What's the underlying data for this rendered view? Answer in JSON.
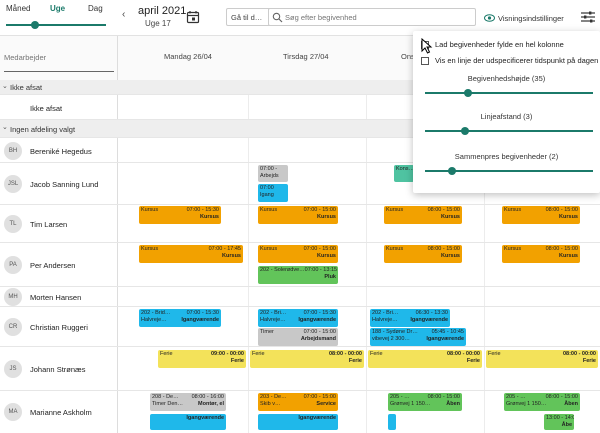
{
  "view_switch": {
    "month": "Måned",
    "week": "Uge",
    "day": "Dag"
  },
  "header": {
    "month_title": "april 2021",
    "week_label": "Uge 17",
    "goto_label": "Gå til d…",
    "search_placeholder": "Søg efter begivenhed",
    "view_settings_label": "Visningsindstillinger"
  },
  "sidebar": {
    "employee_label": "Medarbejder"
  },
  "days": [
    "Mandag 26/04",
    "Tirsdag 27/04",
    "Ons…"
  ],
  "groups": [
    {
      "label": "Ikke afsat"
    },
    {
      "label": "Ingen afdeling valgt"
    }
  ],
  "unassigned_row_label": "Ikke afsat",
  "employees": [
    {
      "initials": "BH",
      "name": "Bereniké Hegedus"
    },
    {
      "initials": "JSL",
      "name": "Jacob Sanning Lund"
    },
    {
      "initials": "TL",
      "name": "Tim Larsen"
    },
    {
      "initials": "PA",
      "name": "Per Andersen"
    },
    {
      "initials": "MH",
      "name": "Morten Hansen"
    },
    {
      "initials": "CR",
      "name": "Christian Ruggeri"
    },
    {
      "initials": "JS",
      "name": "Johann Strønæs"
    },
    {
      "initials": "MA",
      "name": "Marianne Askholm"
    }
  ],
  "events": [
    {
      "l1": "07:00 -",
      "l2": "Arbejds"
    },
    {
      "l1": "07:00",
      "l2": "Igang"
    },
    {
      "l1": "Kons…",
      "l2": ""
    },
    {
      "l1": "Kursus",
      "time": "07:00 - 15:30",
      "l2": "Kursus"
    },
    {
      "l1": "Kursus",
      "time": "07:00 - 15:00",
      "l2": "Kursus"
    },
    {
      "l1": "Kursus",
      "time": "08:00 - 15:00",
      "l2": "Kursus"
    },
    {
      "l1": "Kursus",
      "time": "08:00 - 15:00",
      "l2": "Kursus"
    },
    {
      "l1": "Kursus",
      "time": "07:00 - 17:45",
      "l2": "Kursus"
    },
    {
      "l1": "Kursus",
      "time": "07:00 - 15:00",
      "l2": "Kursus"
    },
    {
      "l1": "Kursus",
      "time": "08:00 - 15:00",
      "l2": "Kursus"
    },
    {
      "l1": "Kursus",
      "time": "08:00 - 15:00",
      "l2": "Kursus"
    },
    {
      "l1": "202 - Solerødve…",
      "time": "07:00 - 13:15",
      "l2": "Pluk"
    },
    {
      "l1": "202 - Brid…",
      "time": "07:00 - 15:30",
      "sub": "Halvreje…",
      "l2": "Igangværende"
    },
    {
      "l1": "202 - Bri…",
      "time": "07:00 - 15:30",
      "sub": "Halvreje…",
      "l2": "Igangværende"
    },
    {
      "l1": "202 - Bri…",
      "time": "06:30 - 13:30",
      "sub": "Halvreje…",
      "l2": "Igangværende"
    },
    {
      "l1": "Timer",
      "time": "07:00 - 15:00",
      "l2": "Arbejdsmand"
    },
    {
      "l1": "188 - Sydøne Dr…",
      "time": "05:45 - 10:45",
      "sub": "vibevej 2 300…",
      "l2": "Igangværende"
    },
    {
      "l1": "Ferie",
      "time": "09:00 - 00:00",
      "l2": "Ferie"
    },
    {
      "l1": "Ferie",
      "time": "08:00 - 00:00",
      "l2": "Ferie"
    },
    {
      "l1": "Ferie",
      "time": "08:00 - 00:00",
      "l2": "Ferie"
    },
    {
      "l1": "Ferie",
      "time": "08:00 - 00:00",
      "l2": "Ferie"
    },
    {
      "l1": "208 - De…",
      "time": "08:00 - 16:00",
      "sub": "Timer Den…",
      "l2": "Montør, el"
    },
    {
      "l1": "203 - De…",
      "time": "07:00 - 15:00",
      "sub": "Skib v…",
      "l2": "Service"
    },
    {
      "l1": "205 - …",
      "time": "08:00 - 15:00",
      "sub": "Grønvej 1 150…",
      "l2": "Åben"
    },
    {
      "l1": "205 - …",
      "time": "08:00 - 15:00",
      "sub": "Grønvej 1 150…",
      "l2": "Åben"
    },
    {
      "l1": "…",
      "time": "",
      "l2": "Igangværende"
    },
    {
      "l1": "…",
      "time": "",
      "l2": "Igangværende"
    },
    {
      "l1": "…",
      "time": "13:00 - 14:00",
      "l2": "Åbe"
    }
  ],
  "settings_popup": {
    "option1": "Lad begivenheder fylde en hel kolonne",
    "option2": "Vis en linje der udspecificerer tidspunkt på dagen",
    "slider1": {
      "label": "Begivenhedshøjde (35)",
      "value": 35
    },
    "slider2": {
      "label": "Linjeafstand (3)",
      "value": 3
    },
    "slider3": {
      "label": "Sammenpres begivenheder (2)",
      "value": 2
    }
  },
  "colors": {
    "accent": "#1b7a6a",
    "kursus": "#f2a100",
    "igang": "#1fb8ea",
    "aaben": "#62c45a",
    "ferie": "#f3e25a",
    "gray": "#c8c8c8"
  }
}
